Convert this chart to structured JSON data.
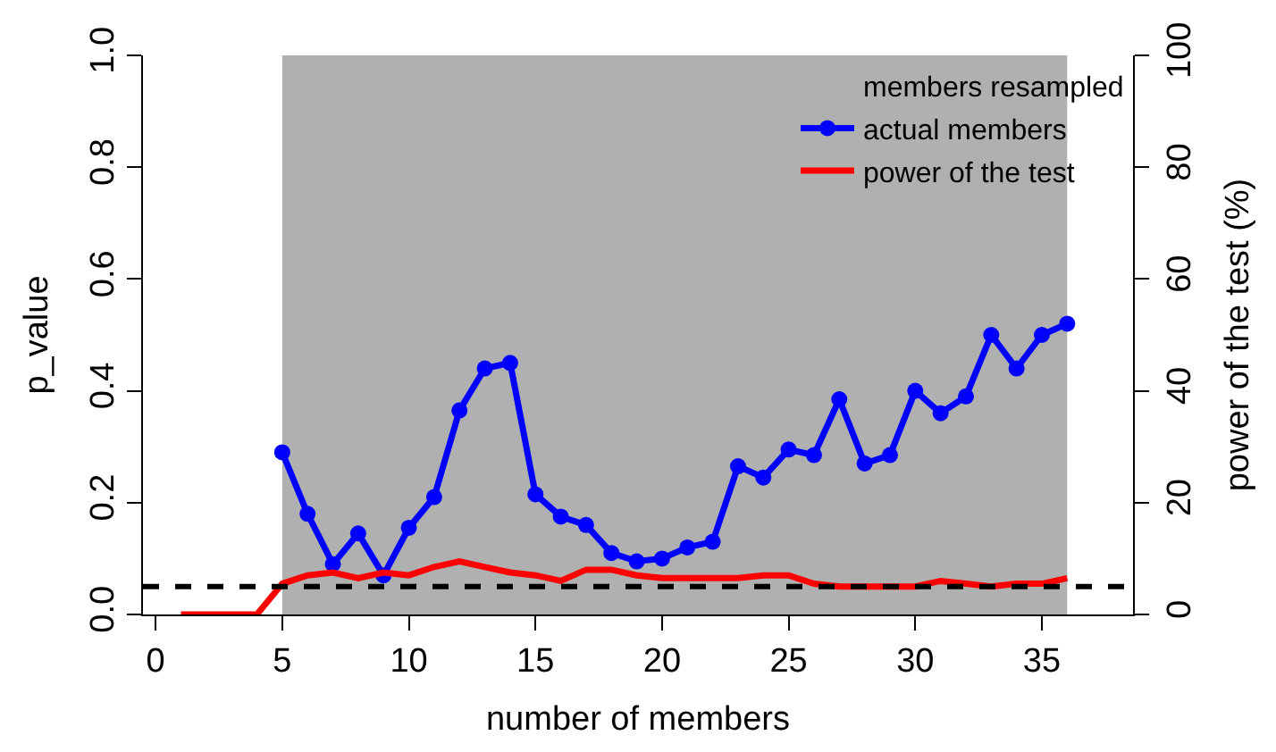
{
  "chart_data": {
    "type": "line",
    "xlabel": "number of members",
    "ylabel": "p_value",
    "y2label": "power of the test (%)",
    "x": [
      5,
      6,
      7,
      8,
      9,
      10,
      11,
      12,
      13,
      14,
      15,
      16,
      17,
      18,
      19,
      20,
      21,
      22,
      23,
      24,
      25,
      26,
      27,
      28,
      29,
      30,
      31,
      32,
      33,
      34,
      35,
      36
    ],
    "series": [
      {
        "name": "members resampled",
        "type": "area",
        "color": "#b0b0b0",
        "values": [
          1,
          1,
          1,
          1,
          1,
          1,
          1,
          1,
          1,
          1,
          1,
          1,
          1,
          1,
          1,
          1,
          1,
          1,
          1,
          1,
          1,
          1,
          1,
          1,
          1,
          1,
          1,
          1,
          1,
          1,
          1,
          1
        ]
      },
      {
        "name": "actual members",
        "color": "#0000ff",
        "marker": "circle",
        "values": [
          0.29,
          0.18,
          0.09,
          0.145,
          0.07,
          0.155,
          0.21,
          0.365,
          0.44,
          0.45,
          0.215,
          0.175,
          0.16,
          0.11,
          0.095,
          0.1,
          0.12,
          0.13,
          0.265,
          0.245,
          0.295,
          0.285,
          0.385,
          0.27,
          0.285,
          0.4,
          0.36,
          0.39,
          0.5,
          0.44,
          0.5,
          0.52
        ]
      },
      {
        "name": "power of the test",
        "color": "#ff0000",
        "marker": "none",
        "axis": "y2",
        "x": [
          1,
          2,
          3,
          4,
          5,
          6,
          7,
          8,
          9,
          10,
          11,
          12,
          13,
          14,
          15,
          16,
          17,
          18,
          19,
          20,
          21,
          22,
          23,
          24,
          25,
          26,
          27,
          28,
          29,
          30,
          31,
          32,
          33,
          34,
          35,
          36
        ],
        "values": [
          0,
          0,
          0,
          0,
          5.5,
          7,
          7.5,
          6.5,
          7.5,
          7,
          8.5,
          9.5,
          8.5,
          7.5,
          7,
          6,
          8,
          8,
          7,
          6.5,
          6.5,
          6.5,
          6.5,
          7,
          7,
          5.5,
          5,
          5,
          5,
          5,
          6,
          5.5,
          5,
          5.5,
          5.5,
          6.5
        ]
      }
    ],
    "xlim": [
      -0.5,
      38.6
    ],
    "xticks": [
      0,
      5,
      10,
      15,
      20,
      25,
      30,
      35
    ],
    "ylim": [
      0,
      1
    ],
    "yticks": [
      {
        "value": 0,
        "label": "0.0"
      },
      0.2,
      0.4,
      0.6,
      0.8,
      {
        "value": 1,
        "label": "1.0"
      }
    ],
    "y2lim": [
      0,
      100
    ],
    "y2ticks": [
      0,
      20,
      40,
      60,
      80,
      100
    ],
    "ref_lines": [
      {
        "axis": "y",
        "value": 0.05,
        "color": "#000000",
        "line_style": "dashed"
      }
    ],
    "legend": "top right"
  }
}
